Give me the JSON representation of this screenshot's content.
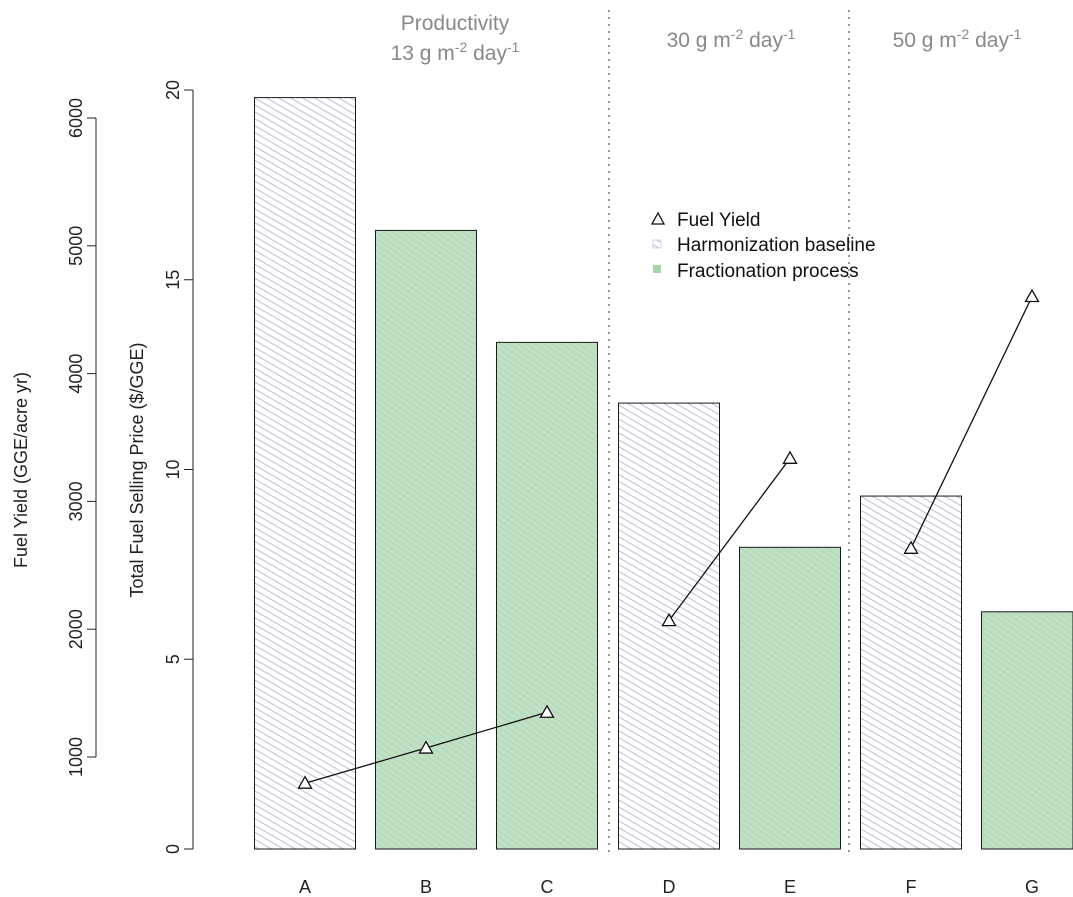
{
  "chart_data": {
    "type": "bar",
    "categories": [
      "A",
      "B",
      "C",
      "D",
      "E",
      "F",
      "G"
    ],
    "series": [
      {
        "name": "Harmonization baseline",
        "kind": "bar",
        "color": "#c9c9e3",
        "values": [
          19.8,
          null,
          null,
          11.75,
          null,
          9.3,
          null
        ]
      },
      {
        "name": "Fractionation process",
        "kind": "bar",
        "color": "#b8dcbe",
        "values": [
          null,
          16.3,
          13.35,
          null,
          7.95,
          null,
          6.25
        ]
      },
      {
        "name": "Fuel Yield",
        "kind": "line-marker",
        "marker": "triangle",
        "axis": "secondary",
        "values": [
          795,
          1070,
          1350,
          2067,
          3337,
          2633,
          4603
        ]
      }
    ],
    "line_segments": [
      [
        0,
        1,
        2
      ],
      [
        3,
        4
      ],
      [
        5,
        6
      ]
    ],
    "ylabel": "Total Fuel Selling Price ($/GGE)",
    "ylim": [
      0,
      20
    ],
    "yticks": [
      "0",
      "5",
      "10",
      "15",
      "20"
    ],
    "y2label": "Fuel Yield (GGE/acre yr)",
    "y2ticks": [
      "1000",
      "2000",
      "3000",
      "4000",
      "5000",
      "6000"
    ],
    "legend": {
      "placement": "top-center",
      "entries": [
        "Fuel Yield",
        "Harmonization baseline",
        "Fractionation process"
      ]
    },
    "group_labels": [
      {
        "line1": "Productivity",
        "line2_value": "13",
        "unit": "g m",
        "exp1": "-2",
        "mid": " day",
        "exp2": "-1"
      },
      {
        "line1": "",
        "line2_value": "30",
        "unit": "g m",
        "exp1": "-2",
        "mid": " day",
        "exp2": "-1"
      },
      {
        "line1": "",
        "line2_value": "50",
        "unit": "g m",
        "exp1": "-2",
        "mid": " day",
        "exp2": "-1"
      }
    ],
    "grid": false
  }
}
